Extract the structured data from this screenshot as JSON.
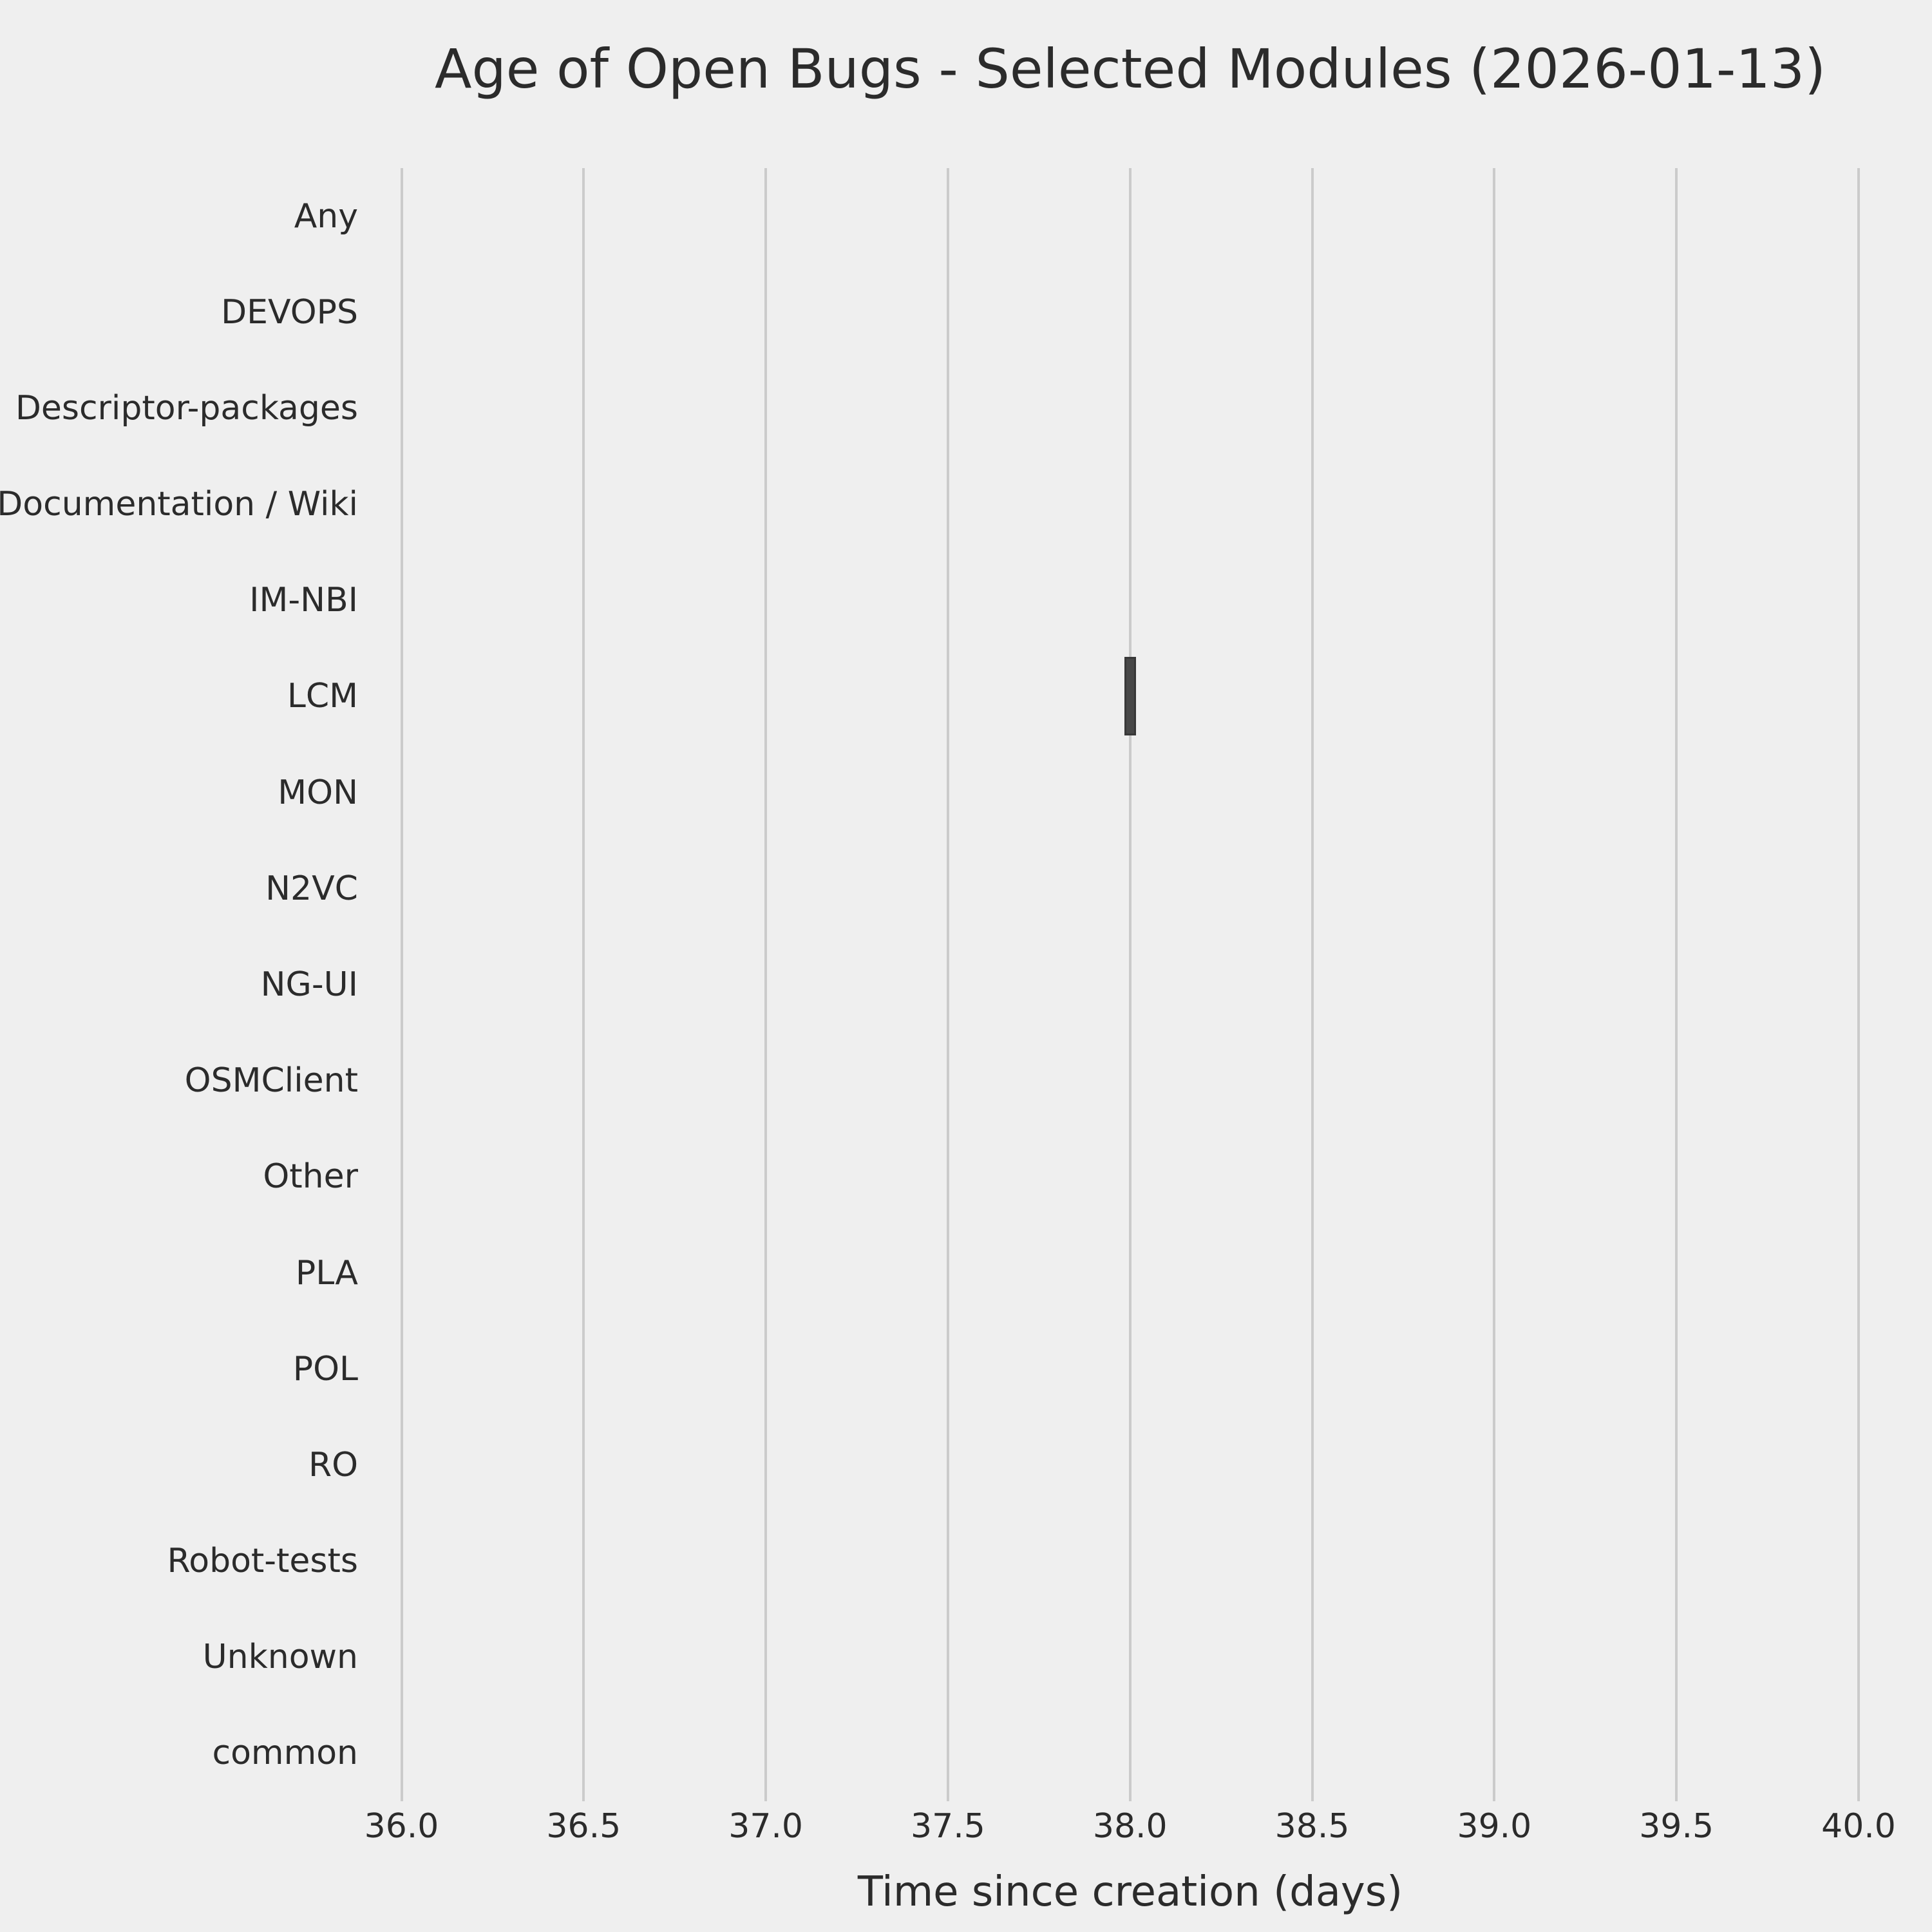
{
  "chart_data": {
    "type": "bar",
    "orientation": "horizontal",
    "title": "Age of Open Bugs - Selected Modules (2026-01-13)",
    "xlabel": "Time since creation (days)",
    "categories": [
      "Any",
      "DEVOPS",
      "Descriptor-packages",
      "Documentation / Wiki",
      "IM-NBI",
      "LCM",
      "MON",
      "N2VC",
      "NG-UI",
      "OSMClient",
      "Other",
      "PLA",
      "POL",
      "RO",
      "Robot-tests",
      "Unknown",
      "common"
    ],
    "xticks": [
      "36.0",
      "36.5",
      "37.0",
      "37.5",
      "38.0",
      "38.5",
      "39.0",
      "39.5",
      "40.0"
    ],
    "xlim": [
      36.0,
      40.0
    ],
    "grid": "vertical-only",
    "legend": "none",
    "marks": [
      {
        "category": "LCM",
        "value": 38.0,
        "kind": "box"
      }
    ],
    "colors": {
      "background": "#efefef",
      "gridline": "#cbcbcb",
      "bar_fill": "#474747",
      "bar_edge": "#383838",
      "text": "#2b2b2b"
    }
  }
}
